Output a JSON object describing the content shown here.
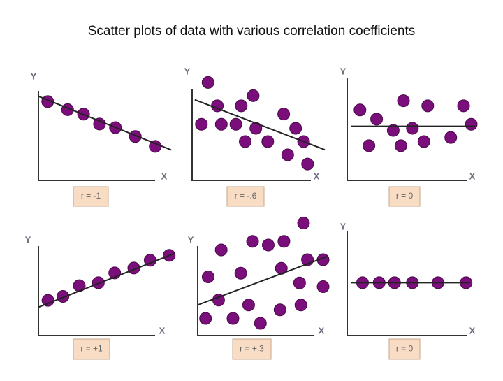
{
  "title": "Scatter plots of data with various correlation coefficients",
  "chart_data": [
    {
      "type": "scatter",
      "x_label": "X",
      "y_label": "Y",
      "annotation": "r = -1",
      "color": "#7a0e7a",
      "xlim": [
        0,
        10
      ],
      "ylim": [
        0,
        10
      ],
      "x": [
        0.7,
        2.2,
        3.4,
        4.6,
        5.8,
        7.3,
        8.8
      ],
      "y": [
        8.8,
        7.9,
        7.4,
        6.3,
        5.9,
        4.9,
        3.8
      ],
      "fit_x": [
        0,
        10
      ],
      "fit_y": [
        9.4,
        3.4
      ]
    },
    {
      "type": "scatter",
      "x_label": "X",
      "y_label": "Y",
      "annotation": "r = -.6",
      "color": "#7a0e7a",
      "xlim": [
        0,
        10
      ],
      "ylim": [
        0,
        10
      ],
      "x": [
        1.2,
        1.9,
        3.7,
        4.6,
        0.7,
        2.2,
        3.3,
        4.8,
        4.0,
        5.7,
        6.9,
        7.8,
        8.4,
        7.2,
        8.7
      ],
      "y": [
        9.6,
        7.3,
        7.3,
        8.3,
        5.5,
        5.5,
        5.5,
        5.1,
        3.8,
        3.8,
        6.5,
        5.1,
        3.8,
        2.5,
        1.6
      ],
      "fit_x": [
        0.2,
        10
      ],
      "fit_y": [
        7.9,
        3.0
      ]
    },
    {
      "type": "scatter",
      "x_label": "X",
      "y_label": "Y",
      "annotation": "r = 0",
      "color": "#7a0e7a",
      "xlim": [
        0,
        10
      ],
      "ylim": [
        0,
        10
      ],
      "x": [
        1.0,
        2.3,
        4.4,
        6.3,
        9.1,
        1.7,
        3.6,
        4.2,
        5.1,
        6.0,
        8.1,
        9.7
      ],
      "y": [
        6.9,
        6.0,
        7.8,
        7.3,
        7.3,
        3.4,
        4.9,
        3.4,
        5.1,
        3.8,
        4.2,
        5.5
      ],
      "fit_x": [
        0.3,
        10
      ],
      "fit_y": [
        5.3,
        5.3
      ]
    },
    {
      "type": "scatter",
      "x_label": "X",
      "y_label": "Y",
      "annotation": "r = +1",
      "color": "#7a0e7a",
      "xlim": [
        0,
        10
      ],
      "ylim": [
        0,
        10
      ],
      "x": [
        0.7,
        1.8,
        3.0,
        4.4,
        5.6,
        7.0,
        8.2,
        9.6
      ],
      "y": [
        3.6,
        4.0,
        5.1,
        5.4,
        6.4,
        6.9,
        7.7,
        8.2
      ],
      "fit_x": [
        0,
        10
      ],
      "fit_y": [
        2.9,
        8.4
      ]
    },
    {
      "type": "scatter",
      "x_label": "X",
      "y_label": "Y",
      "annotation": "r = +.3",
      "color": "#7a0e7a",
      "xlim": [
        0,
        10
      ],
      "ylim": [
        0,
        10
      ],
      "x": [
        8.1,
        1.8,
        4.2,
        5.4,
        6.6,
        0.8,
        3.3,
        6.4,
        8.4,
        9.6,
        1.6,
        3.9,
        7.8,
        9.6,
        0.6,
        2.7,
        4.8,
        6.3,
        7.9
      ],
      "y": [
        9.2,
        7.0,
        7.7,
        7.4,
        7.7,
        4.8,
        5.1,
        5.5,
        6.2,
        6.2,
        2.9,
        2.5,
        4.3,
        4.0,
        1.4,
        1.4,
        1.0,
        2.1,
        2.5
      ],
      "fit_x": [
        0,
        10
      ],
      "fit_y": [
        2.5,
        6.5
      ]
    },
    {
      "type": "scatter",
      "x_label": "X",
      "y_label": "Y",
      "annotation": "r = 0",
      "color": "#7a0e7a",
      "xlim": [
        0,
        10
      ],
      "ylim": [
        0,
        10
      ],
      "x": [
        1.2,
        2.5,
        3.7,
        5.1,
        7.1,
        9.3
      ],
      "y": [
        5.4,
        5.4,
        5.4,
        5.4,
        5.4,
        5.4
      ],
      "fit_x": [
        0.3,
        9.6
      ],
      "fit_y": [
        5.4,
        5.4
      ]
    }
  ]
}
